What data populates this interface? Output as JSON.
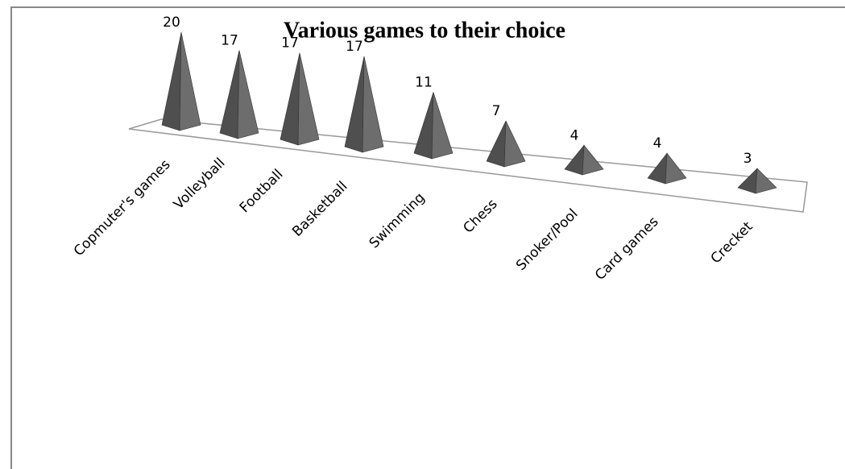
{
  "chart_data": {
    "type": "pyramid3d",
    "title": "Various games to their choice",
    "categories": [
      "Copmuter's games",
      "Volleyball",
      "Football",
      "Basketball",
      "Swimming",
      "Chess",
      "Snoker/Pool",
      "Card games",
      "Crecket"
    ],
    "values": [
      20,
      17,
      17,
      17,
      11,
      7,
      4,
      4,
      3
    ],
    "color": "#6d6d6d"
  }
}
